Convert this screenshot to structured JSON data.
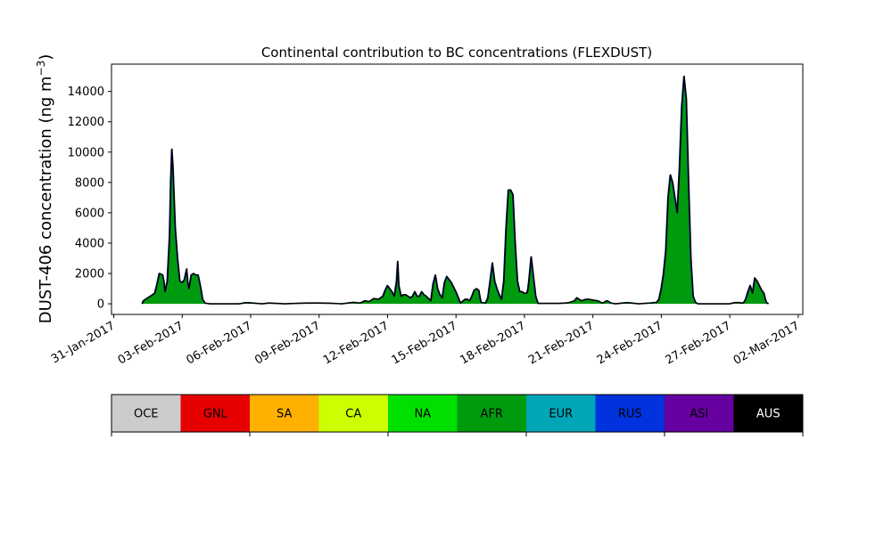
{
  "chart_data": {
    "type": "area",
    "title": "Continental contribution to BC concentrations (FLEXDUST)",
    "ylabel_main": "DUST-406 concentration (ng m",
    "ylabel_sup": "−3",
    "ylabel_close": ")",
    "xlabel": "",
    "ylim": [
      -700,
      15800
    ],
    "xlim": [
      -0.1,
      30.2
    ],
    "yticks": [
      0,
      2000,
      4000,
      6000,
      8000,
      10000,
      12000,
      14000
    ],
    "xticks": [
      {
        "pos": 0,
        "label": "31-Jan-2017"
      },
      {
        "pos": 3,
        "label": "03-Feb-2017"
      },
      {
        "pos": 6,
        "label": "06-Feb-2017"
      },
      {
        "pos": 9,
        "label": "09-Feb-2017"
      },
      {
        "pos": 12,
        "label": "12-Feb-2017"
      },
      {
        "pos": 15,
        "label": "15-Feb-2017"
      },
      {
        "pos": 18,
        "label": "18-Feb-2017"
      },
      {
        "pos": 21,
        "label": "21-Feb-2017"
      },
      {
        "pos": 24,
        "label": "24-Feb-2017"
      },
      {
        "pos": 27,
        "label": "27-Feb-2017"
      },
      {
        "pos": 30,
        "label": "02-Mar-2017"
      }
    ],
    "series_colors": {
      "fill": "#009a0e",
      "outline": "#000000",
      "rus_edge": "#0033dd"
    },
    "points": [
      [
        1.25,
        0
      ],
      [
        1.3,
        200
      ],
      [
        1.5,
        400
      ],
      [
        1.7,
        600
      ],
      [
        1.8,
        700
      ],
      [
        1.9,
        1300
      ],
      [
        2.0,
        2000
      ],
      [
        2.15,
        1900
      ],
      [
        2.2,
        1500
      ],
      [
        2.25,
        800
      ],
      [
        2.35,
        1500
      ],
      [
        2.45,
        4500
      ],
      [
        2.5,
        8000
      ],
      [
        2.55,
        10200
      ],
      [
        2.6,
        9000
      ],
      [
        2.7,
        5000
      ],
      [
        2.8,
        3000
      ],
      [
        2.9,
        1500
      ],
      [
        3.0,
        1400
      ],
      [
        3.1,
        1600
      ],
      [
        3.2,
        2300
      ],
      [
        3.25,
        1400
      ],
      [
        3.3,
        1000
      ],
      [
        3.4,
        1900
      ],
      [
        3.5,
        2000
      ],
      [
        3.6,
        1900
      ],
      [
        3.7,
        1900
      ],
      [
        3.8,
        1200
      ],
      [
        3.9,
        300
      ],
      [
        4.0,
        50
      ],
      [
        4.2,
        0
      ],
      [
        5.5,
        0
      ],
      [
        5.8,
        80
      ],
      [
        6.1,
        50
      ],
      [
        6.5,
        0
      ],
      [
        6.8,
        50
      ],
      [
        7.5,
        0
      ],
      [
        8.0,
        30
      ],
      [
        8.5,
        50
      ],
      [
        9.0,
        50
      ],
      [
        9.5,
        40
      ],
      [
        10.0,
        0
      ],
      [
        10.5,
        100
      ],
      [
        10.8,
        50
      ],
      [
        11.0,
        200
      ],
      [
        11.2,
        150
      ],
      [
        11.4,
        350
      ],
      [
        11.6,
        300
      ],
      [
        11.8,
        500
      ],
      [
        11.9,
        900
      ],
      [
        12.0,
        1200
      ],
      [
        12.2,
        800
      ],
      [
        12.3,
        500
      ],
      [
        12.4,
        1500
      ],
      [
        12.45,
        2800
      ],
      [
        12.5,
        1200
      ],
      [
        12.6,
        500
      ],
      [
        12.7,
        600
      ],
      [
        12.8,
        600
      ],
      [
        12.9,
        500
      ],
      [
        13.0,
        400
      ],
      [
        13.1,
        500
      ],
      [
        13.2,
        800
      ],
      [
        13.3,
        500
      ],
      [
        13.4,
        500
      ],
      [
        13.5,
        800
      ],
      [
        13.6,
        600
      ],
      [
        13.7,
        500
      ],
      [
        13.9,
        200
      ],
      [
        14.0,
        1300
      ],
      [
        14.1,
        1900
      ],
      [
        14.2,
        1000
      ],
      [
        14.3,
        600
      ],
      [
        14.4,
        400
      ],
      [
        14.5,
        1400
      ],
      [
        14.6,
        1800
      ],
      [
        14.8,
        1400
      ],
      [
        15.0,
        800
      ],
      [
        15.2,
        50
      ],
      [
        15.4,
        300
      ],
      [
        15.5,
        300
      ],
      [
        15.6,
        200
      ],
      [
        15.7,
        500
      ],
      [
        15.8,
        900
      ],
      [
        15.9,
        1000
      ],
      [
        16.0,
        900
      ],
      [
        16.1,
        100
      ],
      [
        16.3,
        50
      ],
      [
        16.4,
        400
      ],
      [
        16.5,
        1500
      ],
      [
        16.6,
        2700
      ],
      [
        16.7,
        1500
      ],
      [
        16.8,
        1000
      ],
      [
        16.9,
        600
      ],
      [
        17.0,
        300
      ],
      [
        17.1,
        1500
      ],
      [
        17.2,
        5000
      ],
      [
        17.3,
        7500
      ],
      [
        17.4,
        7500
      ],
      [
        17.5,
        7200
      ],
      [
        17.6,
        4000
      ],
      [
        17.7,
        1500
      ],
      [
        17.8,
        800
      ],
      [
        17.9,
        800
      ],
      [
        18.0,
        700
      ],
      [
        18.1,
        700
      ],
      [
        18.15,
        900
      ],
      [
        18.2,
        1500
      ],
      [
        18.3,
        3100
      ],
      [
        18.4,
        1800
      ],
      [
        18.5,
        500
      ],
      [
        18.6,
        30
      ],
      [
        19.0,
        30
      ],
      [
        19.5,
        30
      ],
      [
        19.8,
        50
      ],
      [
        20.0,
        100
      ],
      [
        20.2,
        200
      ],
      [
        20.3,
        400
      ],
      [
        20.4,
        300
      ],
      [
        20.5,
        200
      ],
      [
        20.6,
        250
      ],
      [
        20.7,
        300
      ],
      [
        20.8,
        300
      ],
      [
        21.0,
        250
      ],
      [
        21.2,
        200
      ],
      [
        21.3,
        150
      ],
      [
        21.4,
        50
      ],
      [
        21.5,
        100
      ],
      [
        21.6,
        200
      ],
      [
        21.7,
        150
      ],
      [
        21.8,
        50
      ],
      [
        22.0,
        0
      ],
      [
        22.3,
        50
      ],
      [
        22.5,
        80
      ],
      [
        22.7,
        50
      ],
      [
        23.0,
        0
      ],
      [
        23.5,
        50
      ],
      [
        23.8,
        100
      ],
      [
        23.9,
        300
      ],
      [
        24.0,
        1000
      ],
      [
        24.1,
        2000
      ],
      [
        24.2,
        3500
      ],
      [
        24.3,
        7000
      ],
      [
        24.4,
        8500
      ],
      [
        24.5,
        8000
      ],
      [
        24.6,
        7000
      ],
      [
        24.7,
        6000
      ],
      [
        24.8,
        9000
      ],
      [
        24.9,
        13000
      ],
      [
        25.0,
        15000
      ],
      [
        25.1,
        13500
      ],
      [
        25.2,
        8000
      ],
      [
        25.3,
        3000
      ],
      [
        25.4,
        500
      ],
      [
        25.5,
        100
      ],
      [
        25.6,
        0
      ],
      [
        27.0,
        0
      ],
      [
        27.2,
        80
      ],
      [
        27.4,
        80
      ],
      [
        27.6,
        50
      ],
      [
        27.7,
        300
      ],
      [
        27.8,
        800
      ],
      [
        27.9,
        1200
      ],
      [
        28.0,
        700
      ],
      [
        28.1,
        1700
      ],
      [
        28.2,
        1500
      ],
      [
        28.3,
        1200
      ],
      [
        28.4,
        900
      ],
      [
        28.5,
        700
      ],
      [
        28.6,
        100
      ],
      [
        28.7,
        0
      ]
    ]
  },
  "legend": {
    "items": [
      {
        "label": "OCE",
        "color": "#cccccc",
        "text_color": "#000000"
      },
      {
        "label": "GNL",
        "color": "#e60000",
        "text_color": "#000000"
      },
      {
        "label": "SA",
        "color": "#ffb000",
        "text_color": "#000000"
      },
      {
        "label": "CA",
        "color": "#ccff00",
        "text_color": "#000000"
      },
      {
        "label": "NA",
        "color": "#00e000",
        "text_color": "#000000"
      },
      {
        "label": "AFR",
        "color": "#009a0e",
        "text_color": "#000000"
      },
      {
        "label": "EUR",
        "color": "#00a6b8",
        "text_color": "#000000"
      },
      {
        "label": "RUS",
        "color": "#0033dd",
        "text_color": "#000000"
      },
      {
        "label": "ASI",
        "color": "#6600a0",
        "text_color": "#000000"
      },
      {
        "label": "AUS",
        "color": "#000000",
        "text_color": "#ffffff"
      }
    ]
  }
}
